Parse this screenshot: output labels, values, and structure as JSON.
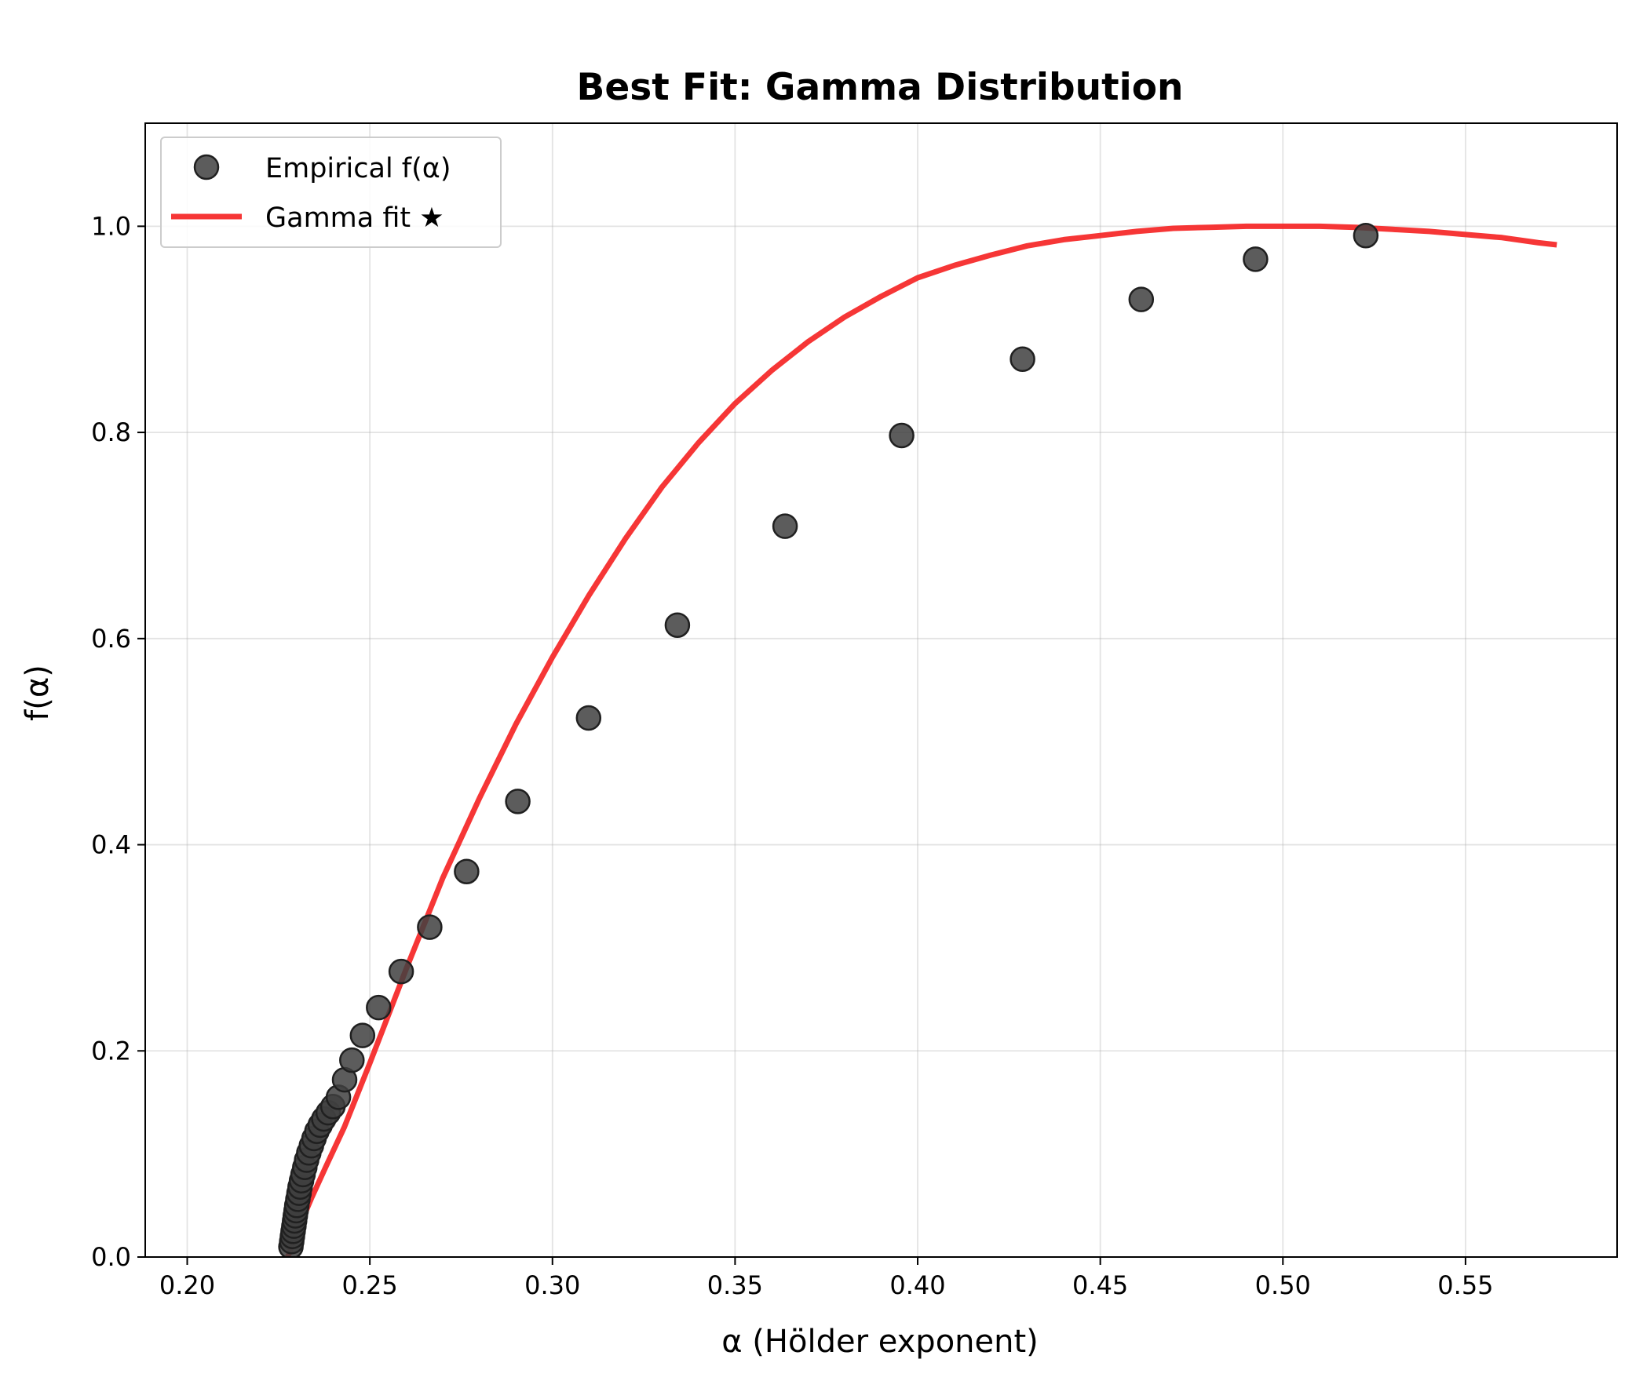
{
  "chart_data": {
    "type": "scatter",
    "title": "Best Fit: Gamma Distribution",
    "xlabel": "α (Hölder exponent)",
    "ylabel": "f(α)",
    "xlim": [
      0.1885,
      0.5915
    ],
    "ylim": [
      0.0,
      1.1
    ],
    "xticks": [
      0.2,
      0.25,
      0.3,
      0.35,
      0.4,
      0.45,
      0.5,
      0.55
    ],
    "xtick_labels": [
      "0.20",
      "0.25",
      "0.30",
      "0.35",
      "0.40",
      "0.45",
      "0.50",
      "0.55"
    ],
    "yticks": [
      0.0,
      0.2,
      0.4,
      0.6,
      0.8,
      1.0
    ],
    "ytick_labels": [
      "0.0",
      "0.2",
      "0.4",
      "0.6",
      "0.8",
      "1.0"
    ],
    "grid": true,
    "legend_position": "top-left",
    "series": [
      {
        "name": "Empirical f(α)",
        "kind": "scatter",
        "color": "#404040",
        "x": [
          0.2284,
          0.2286,
          0.2288,
          0.229,
          0.2292,
          0.2294,
          0.2296,
          0.2298,
          0.23,
          0.2303,
          0.2306,
          0.2309,
          0.2313,
          0.2317,
          0.2322,
          0.2327,
          0.2333,
          0.234,
          0.2347,
          0.2355,
          0.2364,
          0.2374,
          0.2386,
          0.2399,
          0.2414,
          0.2431,
          0.2451,
          0.248,
          0.2524,
          0.2586,
          0.2664,
          0.2765,
          0.2905,
          0.3099,
          0.3342,
          0.3637,
          0.3956,
          0.4287,
          0.4612,
          0.4925,
          0.5227
        ],
        "y": [
          0.01,
          0.015,
          0.02,
          0.025,
          0.03,
          0.035,
          0.04,
          0.045,
          0.05,
          0.056,
          0.062,
          0.068,
          0.074,
          0.08,
          0.087,
          0.094,
          0.101,
          0.108,
          0.115,
          0.122,
          0.128,
          0.134,
          0.14,
          0.146,
          0.155,
          0.172,
          0.191,
          0.215,
          0.242,
          0.277,
          0.32,
          0.374,
          0.442,
          0.523,
          0.613,
          0.709,
          0.797,
          0.871,
          0.929,
          0.968,
          0.991
        ]
      },
      {
        "name": "Gamma fit ★",
        "kind": "line",
        "color": "#f52020",
        "x": [
          0.2275,
          0.229,
          0.231,
          0.234,
          0.238,
          0.243,
          0.25,
          0.26,
          0.27,
          0.28,
          0.29,
          0.3,
          0.31,
          0.32,
          0.33,
          0.34,
          0.35,
          0.36,
          0.37,
          0.38,
          0.39,
          0.4,
          0.41,
          0.42,
          0.43,
          0.44,
          0.45,
          0.46,
          0.47,
          0.48,
          0.49,
          0.5,
          0.51,
          0.52,
          0.53,
          0.54,
          0.55,
          0.56,
          0.57,
          0.575
        ],
        "y": [
          0.0,
          0.014,
          0.032,
          0.057,
          0.088,
          0.126,
          0.188,
          0.28,
          0.368,
          0.445,
          0.517,
          0.582,
          0.642,
          0.697,
          0.747,
          0.79,
          0.828,
          0.86,
          0.888,
          0.912,
          0.932,
          0.95,
          0.962,
          0.972,
          0.981,
          0.987,
          0.991,
          0.995,
          0.998,
          0.999,
          1.0,
          1.0,
          1.0,
          0.999,
          0.997,
          0.995,
          0.992,
          0.989,
          0.984,
          0.982
        ]
      }
    ]
  }
}
